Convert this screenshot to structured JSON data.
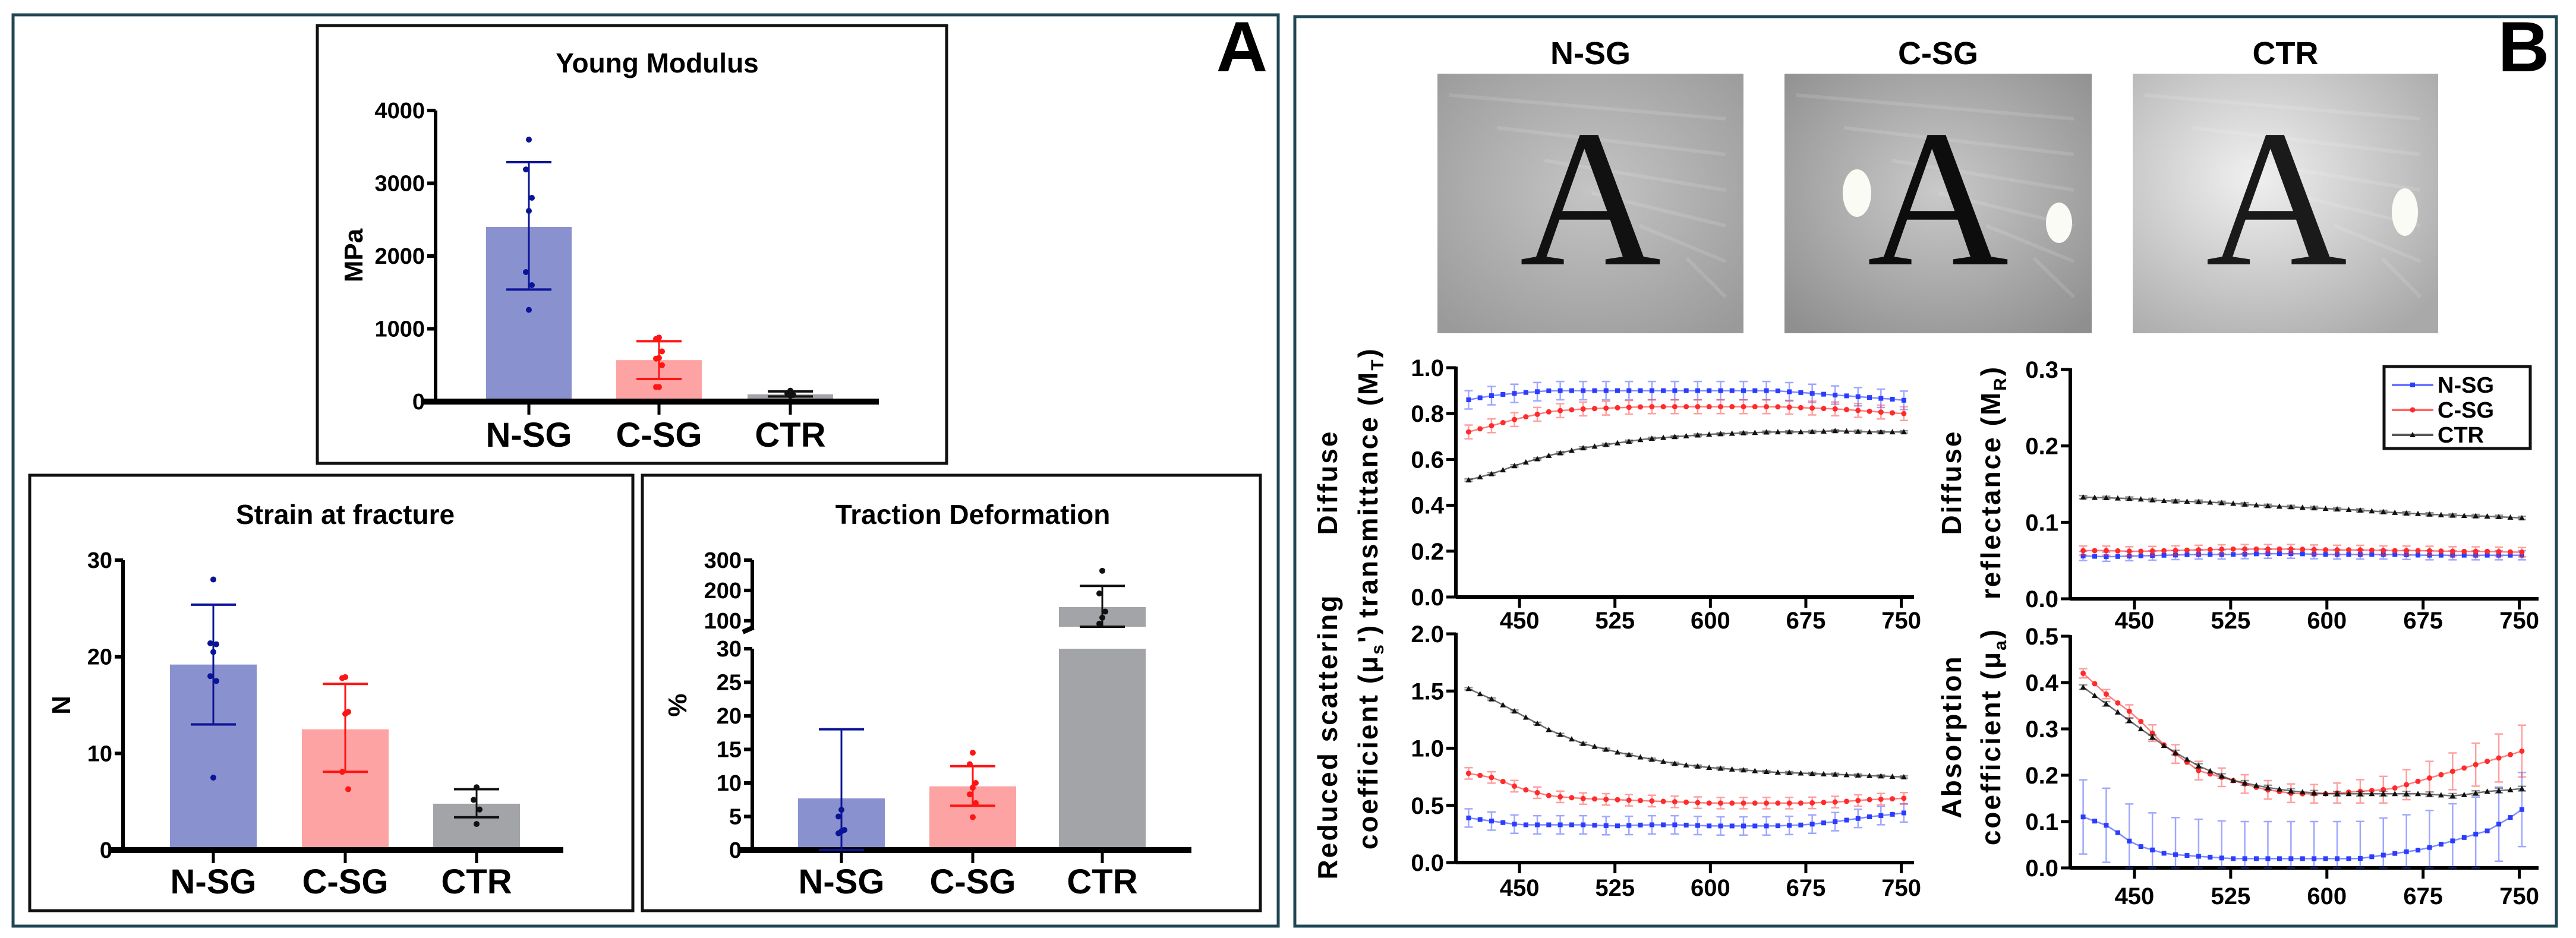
{
  "panels": {
    "a_label": "A",
    "b_label": "B"
  },
  "photos": {
    "labels": [
      "N-SG",
      "C-SG",
      "CTR"
    ],
    "letter": "A"
  },
  "legend": {
    "entries": [
      "N-SG",
      "C-SG",
      "CTR"
    ]
  },
  "colors": {
    "nsg_bar": "#8a91cf",
    "nsg_dark": "#0a1496",
    "nsg_line": "#2a3cff",
    "csg_bar": "#fda3a3",
    "csg_dark": "#ff1414",
    "csg_line": "#ff2a2a",
    "ctr_bar": "#a3a4a8",
    "ctr_dark": "#111111",
    "ctr_line": "#111111",
    "frame": "#1f4653"
  },
  "chart_data": [
    {
      "type": "bar",
      "title": "Young Modulus",
      "ylabel": "MPa",
      "categories": [
        "N-SG",
        "C-SG",
        "CTR"
      ],
      "values": [
        2400,
        570,
        100
      ],
      "err_low": [
        1540,
        310,
        70
      ],
      "err_high": [
        3290,
        830,
        140
      ],
      "points": [
        [
          3600,
          3190,
          2800,
          2620,
          1780,
          1600,
          1260
        ],
        [
          880,
          860,
          690,
          600,
          590,
          500,
          200,
          200
        ],
        [
          150,
          110,
          90,
          80
        ]
      ],
      "ylim": [
        0,
        4000
      ],
      "yticks": [
        0,
        1000,
        2000,
        3000,
        4000
      ]
    },
    {
      "type": "bar",
      "title": "Strain at fracture",
      "ylabel": "N",
      "categories": [
        "N-SG",
        "C-SG",
        "CTR"
      ],
      "values": [
        19.2,
        12.5,
        4.8
      ],
      "err_low": [
        13.0,
        8.1,
        3.4
      ],
      "err_high": [
        25.4,
        17.2,
        6.3
      ],
      "points": [
        [
          28,
          21.4,
          21.3,
          20.5,
          18,
          17.5,
          7.5
        ],
        [
          17.9,
          17.8,
          14.3,
          14.1,
          8.1,
          6.3
        ],
        [
          6.5,
          5.2,
          4.2,
          2.7
        ]
      ],
      "ylim": [
        0,
        30
      ],
      "yticks": [
        0,
        10,
        20,
        30
      ]
    },
    {
      "type": "bar",
      "title": "Traction Deformation",
      "ylabel": "%",
      "categories": [
        "N-SG",
        "C-SG",
        "CTR"
      ],
      "values": [
        7.7,
        9.5,
        145
      ],
      "err_low": [
        0,
        6.6,
        80
      ],
      "err_high": [
        18,
        12.5,
        215
      ],
      "points": [
        [
          6,
          5,
          3,
          2.8,
          2.5
        ],
        [
          14.5,
          12.8,
          10,
          9.3,
          8.3,
          7,
          4.9
        ],
        [
          265,
          190,
          130,
          110,
          90
        ]
      ],
      "ylim_segments": [
        [
          0,
          30
        ],
        [
          80,
          300
        ]
      ],
      "yticks_segments": [
        [
          0,
          5,
          10,
          15,
          20,
          25,
          30
        ],
        [
          100,
          200,
          300
        ]
      ]
    },
    {
      "type": "line",
      "ylabel": [
        {
          "text": "Diffuse"
        },
        {
          "text": "transmittance (M",
          "sub": "T",
          "after": ")"
        }
      ],
      "x": [
        410,
        430,
        450,
        475,
        500,
        525,
        550,
        575,
        600,
        625,
        650,
        675,
        700,
        725,
        750,
        760
      ],
      "xlim": [
        400,
        760
      ],
      "xticks": [
        450,
        525,
        600,
        675,
        750
      ],
      "ylim": [
        0,
        1.0
      ],
      "yticks": [
        0.0,
        0.2,
        0.4,
        0.6,
        0.8,
        1.0
      ],
      "series": [
        {
          "name": "N-SG",
          "values": [
            0.86,
            0.88,
            0.89,
            0.9,
            0.9,
            0.9,
            0.9,
            0.9,
            0.9,
            0.9,
            0.9,
            0.89,
            0.88,
            0.87,
            0.86,
            0.85
          ],
          "err": 0.04
        },
        {
          "name": "C-SG",
          "values": [
            0.72,
            0.75,
            0.78,
            0.81,
            0.82,
            0.825,
            0.83,
            0.83,
            0.83,
            0.83,
            0.83,
            0.825,
            0.82,
            0.81,
            0.8,
            0.8
          ],
          "err": 0.03
        },
        {
          "name": "CTR",
          "values": [
            0.51,
            0.54,
            0.58,
            0.62,
            0.65,
            0.67,
            0.69,
            0.7,
            0.71,
            0.715,
            0.72,
            0.72,
            0.725,
            0.72,
            0.72,
            0.72
          ],
          "err": 0.005
        }
      ]
    },
    {
      "type": "line",
      "ylabel": [
        {
          "text": "Diffuse"
        },
        {
          "text": "reflectance  (M",
          "sub": "R",
          "after": ")"
        }
      ],
      "x": [
        410,
        430,
        450,
        475,
        500,
        525,
        550,
        575,
        600,
        625,
        650,
        675,
        700,
        725,
        750,
        760
      ],
      "xlim": [
        400,
        765
      ],
      "xticks": [
        450,
        525,
        600,
        675,
        750
      ],
      "ylim": [
        0,
        0.3
      ],
      "yticks": [
        0.0,
        0.1,
        0.2,
        0.3
      ],
      "series": [
        {
          "name": "N-SG",
          "values": [
            0.056,
            0.055,
            0.056,
            0.057,
            0.058,
            0.058,
            0.059,
            0.059,
            0.058,
            0.058,
            0.058,
            0.057,
            0.057,
            0.057,
            0.057,
            0.057
          ],
          "err": 0.006
        },
        {
          "name": "C-SG",
          "values": [
            0.063,
            0.063,
            0.062,
            0.063,
            0.064,
            0.065,
            0.065,
            0.065,
            0.064,
            0.064,
            0.063,
            0.063,
            0.062,
            0.062,
            0.061,
            0.061
          ],
          "err": 0.006
        },
        {
          "name": "CTR",
          "values": [
            0.133,
            0.132,
            0.131,
            0.128,
            0.127,
            0.125,
            0.122,
            0.12,
            0.118,
            0.116,
            0.113,
            0.111,
            0.109,
            0.108,
            0.106,
            0.105
          ],
          "err": 0.002
        }
      ]
    },
    {
      "type": "line",
      "ylabel": [
        {
          "text": "Reduced scattering"
        },
        {
          "text": "coefficient (μ",
          "sub": "s",
          "after": "')"
        }
      ],
      "x": [
        410,
        430,
        450,
        475,
        500,
        525,
        550,
        575,
        600,
        625,
        650,
        675,
        700,
        725,
        750,
        760
      ],
      "xlim": [
        400,
        760
      ],
      "xticks": [
        450,
        525,
        600,
        675,
        750
      ],
      "ylim": [
        0,
        2.0
      ],
      "yticks": [
        0.0,
        0.5,
        1.0,
        1.5,
        2.0
      ],
      "series": [
        {
          "name": "N-SG",
          "values": [
            0.39,
            0.36,
            0.33,
            0.33,
            0.33,
            0.32,
            0.33,
            0.33,
            0.32,
            0.32,
            0.32,
            0.33,
            0.36,
            0.4,
            0.43,
            0.45
          ],
          "err": 0.08
        },
        {
          "name": "C-SG",
          "values": [
            0.78,
            0.74,
            0.65,
            0.58,
            0.56,
            0.55,
            0.54,
            0.53,
            0.52,
            0.52,
            0.52,
            0.52,
            0.53,
            0.55,
            0.56,
            0.57
          ],
          "err": 0.05
        },
        {
          "name": "CTR",
          "values": [
            1.52,
            1.42,
            1.3,
            1.15,
            1.04,
            0.97,
            0.91,
            0.86,
            0.83,
            0.81,
            0.79,
            0.78,
            0.77,
            0.76,
            0.75,
            0.74
          ],
          "err": 0.01
        }
      ]
    },
    {
      "type": "line",
      "ylabel": [
        {
          "text": "Absorption"
        },
        {
          "text": "coefficient (μ",
          "sub": "a",
          "after": ")"
        }
      ],
      "x": [
        410,
        430,
        450,
        475,
        500,
        525,
        550,
        575,
        600,
        625,
        650,
        675,
        700,
        725,
        750,
        760
      ],
      "xlim": [
        400,
        765
      ],
      "xticks": [
        450,
        525,
        600,
        675,
        750
      ],
      "ylim": [
        0,
        0.5
      ],
      "yticks": [
        0.0,
        0.1,
        0.2,
        0.3,
        0.4,
        0.5
      ],
      "series": [
        {
          "name": "N-SG",
          "values": [
            0.11,
            0.09,
            0.05,
            0.03,
            0.025,
            0.02,
            0.02,
            0.02,
            0.02,
            0.02,
            0.03,
            0.04,
            0.06,
            0.08,
            0.12,
            0.15
          ],
          "err": 0.08
        },
        {
          "name": "C-SG",
          "values": [
            0.42,
            0.37,
            0.33,
            0.26,
            0.21,
            0.19,
            0.17,
            0.16,
            0.16,
            0.165,
            0.17,
            0.19,
            0.21,
            0.23,
            0.25,
            0.26
          ],
          "err": [
            0.01,
            0.01,
            0.015,
            0.02,
            0.02,
            0.02,
            0.02,
            0.02,
            0.02,
            0.025,
            0.03,
            0.035,
            0.04,
            0.05,
            0.055,
            0.06
          ]
        },
        {
          "name": "CTR",
          "values": [
            0.39,
            0.35,
            0.31,
            0.26,
            0.22,
            0.19,
            0.175,
            0.165,
            0.16,
            0.16,
            0.16,
            0.16,
            0.155,
            0.165,
            0.17,
            0.175
          ],
          "err": 0.005
        }
      ]
    }
  ]
}
